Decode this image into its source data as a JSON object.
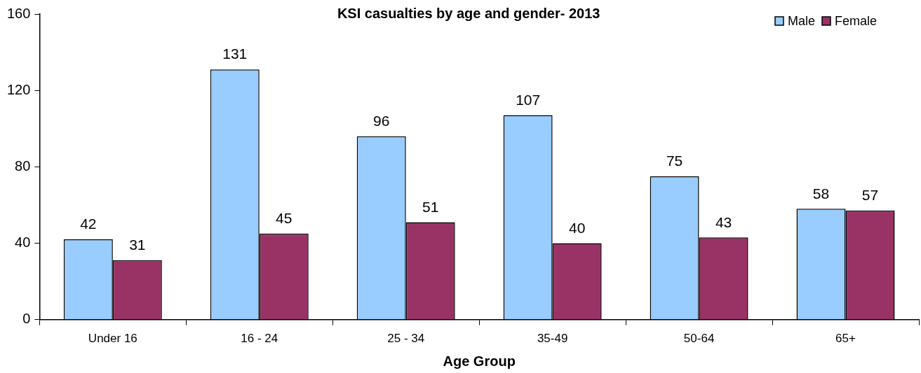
{
  "chart_data": {
    "type": "bar",
    "title": "KSI casualties by age and gender- 2013",
    "xlabel": "Age Group",
    "categories": [
      "Under 16",
      "16 - 24",
      "25 - 34",
      "35-49",
      "50-64",
      "65+"
    ],
    "series": [
      {
        "name": "Male",
        "color": "#99ccff",
        "values": [
          42,
          131,
          96,
          107,
          75,
          58
        ]
      },
      {
        "name": "Female",
        "color": "#993366",
        "values": [
          31,
          45,
          51,
          40,
          43,
          57
        ]
      }
    ],
    "ylim": [
      0,
      160
    ],
    "yticks": [
      0,
      40,
      80,
      120,
      160
    ],
    "grid": false,
    "legend": "top right",
    "data_labels": true
  }
}
